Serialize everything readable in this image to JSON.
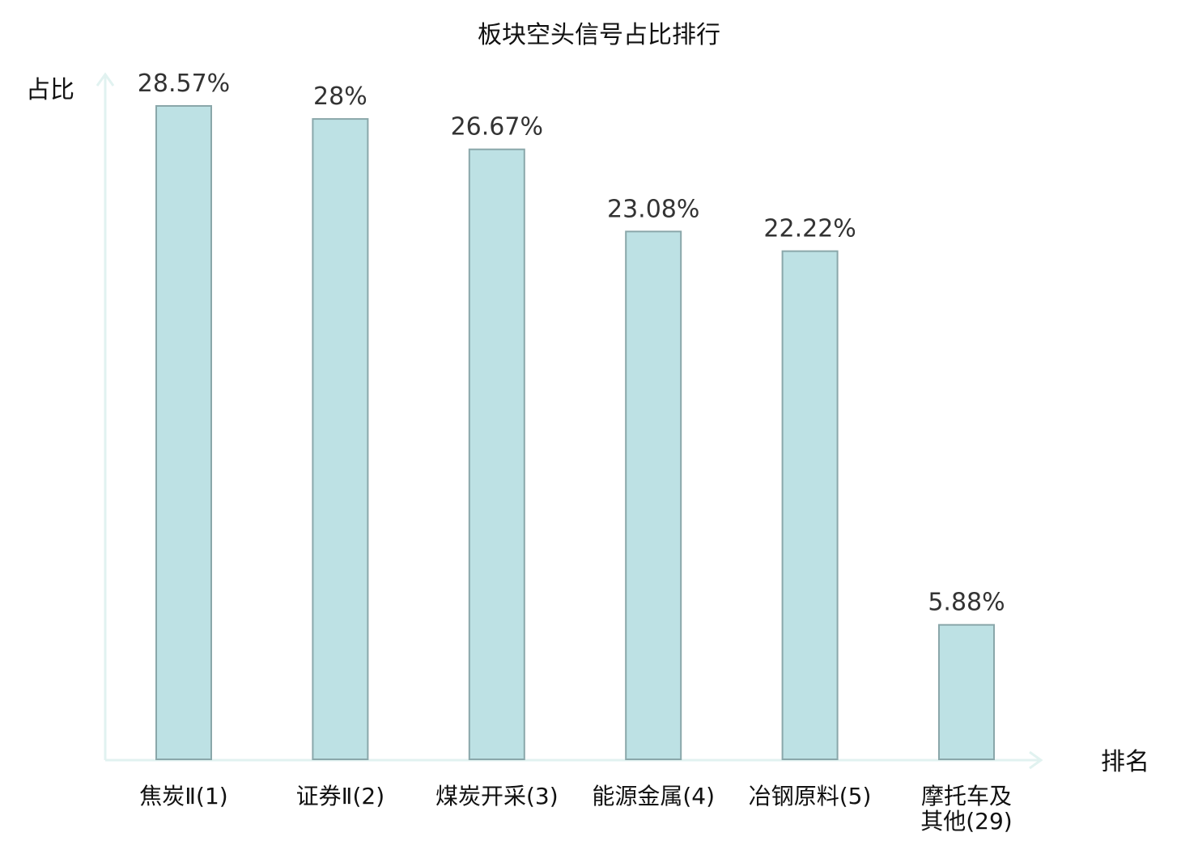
{
  "chart_data": {
    "type": "bar",
    "title": "板块空头信号占比排行",
    "ylabel": "占比",
    "xlabel": "排名",
    "categories": [
      [
        "焦炭Ⅱ(1)"
      ],
      [
        "证券Ⅱ(2)"
      ],
      [
        "煤炭开采(3)"
      ],
      [
        "能源金属(4)"
      ],
      [
        "冶钢原料(5)"
      ],
      [
        "摩托车及",
        "其他(29)"
      ]
    ],
    "values": [
      28.57,
      28,
      26.67,
      23.08,
      22.22,
      5.88
    ],
    "value_labels": [
      "28.57%",
      "28%",
      "26.67%",
      "23.08%",
      "22.22%",
      "5.88%"
    ],
    "highlight": [
      false,
      false,
      false,
      false,
      false,
      true
    ],
    "ylim": [
      0,
      28.57
    ],
    "grid": false,
    "colors": {
      "bar_fill": "#bde1e4",
      "bar_stroke": "#8aa7aa",
      "axis": "#e1f2f0",
      "highlight_text": "#e60000",
      "normal_text": "#111111",
      "value_text": "#333333"
    }
  }
}
